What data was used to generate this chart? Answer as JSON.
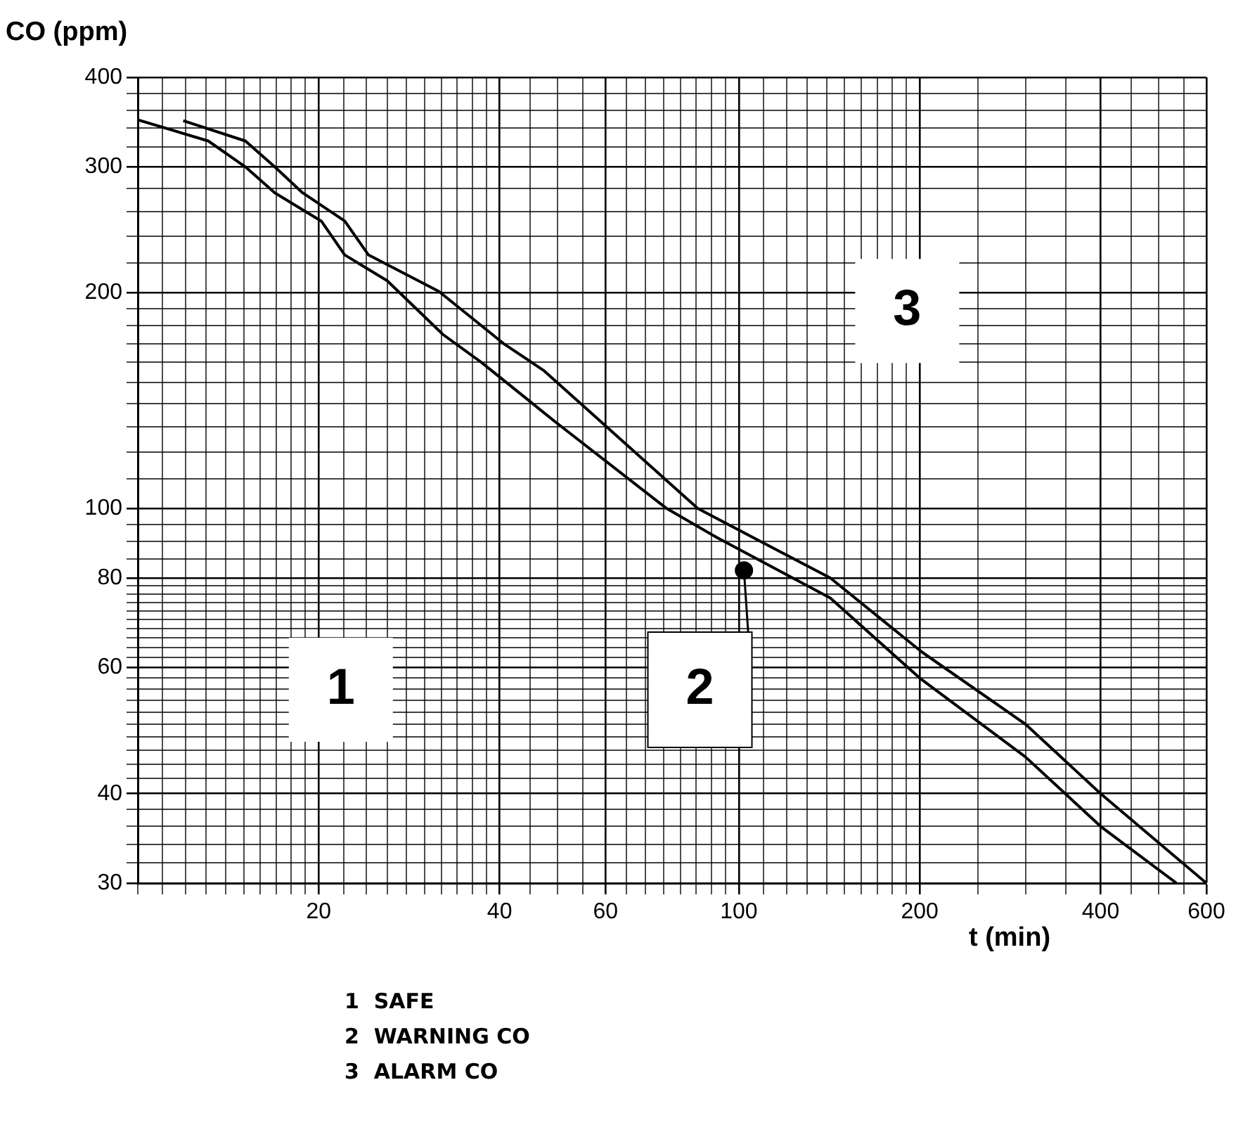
{
  "chart_data": {
    "type": "line",
    "xlabel": "t (min)",
    "ylabel": "CO (ppm)",
    "log": "xy",
    "grid": true,
    "legend": false,
    "marker": "none",
    "line_style": "solid",
    "xlim": [
      10,
      600
    ],
    "xticks": [
      {
        "value": 10,
        "label": null
      },
      {
        "value": 11,
        "label": null
      },
      {
        "value": 12,
        "label": null
      },
      {
        "value": 13,
        "label": null
      },
      {
        "value": 14,
        "label": null
      },
      {
        "value": 15,
        "label": null
      },
      {
        "value": 16,
        "label": null
      },
      {
        "value": 17,
        "label": null
      },
      {
        "value": 18,
        "label": null
      },
      {
        "value": 19,
        "label": null
      },
      20,
      {
        "value": 22,
        "label": null
      },
      {
        "value": 24,
        "label": null
      },
      {
        "value": 26,
        "label": null
      },
      {
        "value": 28,
        "label": null
      },
      {
        "value": 30,
        "label": null
      },
      {
        "value": 32,
        "label": null
      },
      {
        "value": 34,
        "label": null
      },
      {
        "value": 36,
        "label": null
      },
      {
        "value": 38,
        "label": null
      },
      40,
      {
        "value": 45,
        "label": null
      },
      {
        "value": 50,
        "label": null
      },
      {
        "value": 55,
        "label": null
      },
      60,
      {
        "value": 65,
        "label": null
      },
      {
        "value": 70,
        "label": null
      },
      {
        "value": 75,
        "label": null
      },
      {
        "value": 80,
        "label": null
      },
      {
        "value": 85,
        "label": null
      },
      {
        "value": 90,
        "label": null
      },
      {
        "value": 95,
        "label": null
      },
      100,
      {
        "value": 110,
        "label": null
      },
      {
        "value": 120,
        "label": null
      },
      {
        "value": 130,
        "label": null
      },
      {
        "value": 140,
        "label": null
      },
      {
        "value": 150,
        "label": null
      },
      {
        "value": 160,
        "label": null
      },
      {
        "value": 170,
        "label": null
      },
      {
        "value": 180,
        "label": null
      },
      {
        "value": 190,
        "label": null
      },
      200,
      {
        "value": 250,
        "label": null
      },
      {
        "value": 300,
        "label": null
      },
      {
        "value": 350,
        "label": null
      },
      400,
      {
        "value": 450,
        "label": null
      },
      {
        "value": 500,
        "label": null
      },
      {
        "value": 550,
        "label": null
      },
      600
    ],
    "ylim": [
      30,
      400
    ],
    "yticks": [
      30,
      {
        "value": 32,
        "label": null
      },
      {
        "value": 34,
        "label": null
      },
      {
        "value": 36,
        "label": null
      },
      {
        "value": 38,
        "label": null
      },
      40,
      {
        "value": 42,
        "label": null
      },
      {
        "value": 44,
        "label": null
      },
      {
        "value": 46,
        "label": null
      },
      {
        "value": 48,
        "label": null
      },
      {
        "value": 50,
        "label": null
      },
      {
        "value": 52,
        "label": null
      },
      {
        "value": 54,
        "label": null
      },
      {
        "value": 56,
        "label": null
      },
      {
        "value": 58,
        "label": null
      },
      60,
      {
        "value": 62,
        "label": null
      },
      {
        "value": 64,
        "label": null
      },
      {
        "value": 66,
        "label": null
      },
      {
        "value": 68,
        "label": null
      },
      {
        "value": 70,
        "label": null
      },
      {
        "value": 72,
        "label": null
      },
      {
        "value": 74,
        "label": null
      },
      {
        "value": 76,
        "label": null
      },
      {
        "value": 78,
        "label": null
      },
      80,
      {
        "value": 85,
        "label": null
      },
      {
        "value": 90,
        "label": null
      },
      {
        "value": 95,
        "label": null
      },
      100,
      {
        "value": 110,
        "label": null
      },
      {
        "value": 120,
        "label": null
      },
      {
        "value": 130,
        "label": null
      },
      {
        "value": 140,
        "label": null
      },
      {
        "value": 150,
        "label": null
      },
      {
        "value": 160,
        "label": null
      },
      {
        "value": 170,
        "label": null
      },
      {
        "value": 180,
        "label": null
      },
      {
        "value": 190,
        "label": null
      },
      200,
      {
        "value": 220,
        "label": null
      },
      {
        "value": 240,
        "label": null
      },
      {
        "value": 260,
        "label": null
      },
      {
        "value": 280,
        "label": null
      },
      300,
      {
        "value": 320,
        "label": null
      },
      {
        "value": 340,
        "label": null
      },
      {
        "value": 360,
        "label": null
      },
      {
        "value": 380,
        "label": null
      },
      400
    ],
    "series": [
      {
        "color": "#000000",
        "x": [
          10,
          13.1,
          15.1,
          16.9,
          20.2,
          22.1,
          26,
          32.2,
          37.3,
          49.6,
          75.9,
          92.2,
          142,
          200,
          300,
          400,
          535
        ],
        "values": [
          349,
          326,
          300,
          276,
          252,
          226,
          208,
          175,
          160,
          132,
          100,
          91,
          75,
          58,
          45,
          36,
          30
        ]
      },
      {
        "color": "#000000",
        "x": [
          11.9,
          15.1,
          16.9,
          18.8,
          22.1,
          24.2,
          31.7,
          40.6,
          47.3,
          85.5,
          142,
          202,
          300,
          400,
          600
        ],
        "values": [
          348,
          326,
          300,
          276,
          252,
          226,
          201,
          170,
          156,
          100,
          80,
          63,
          50,
          40,
          30
        ]
      },
      {
        "type": "scatter",
        "marker": "circle",
        "color": "#000000",
        "x": [
          102
        ],
        "values": [
          82
        ]
      }
    ],
    "annotations": [
      "1",
      {
        "text": "2",
        "x": 102,
        "y": 82
      },
      "3",
      "1  SAFE",
      "2  WARNING CO",
      "3  ALARM CO"
    ]
  }
}
